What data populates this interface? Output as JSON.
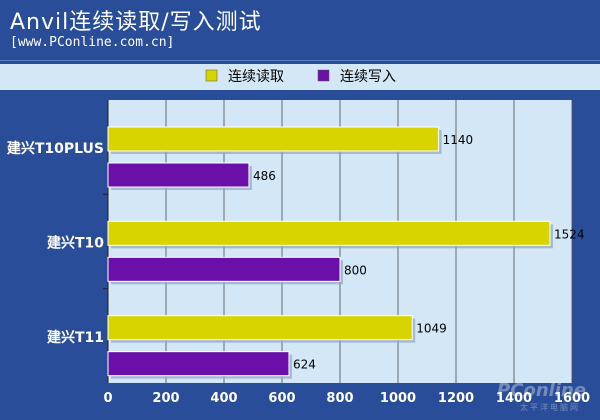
{
  "title": "Anvil连续读取/写入测试",
  "subtitle": "[www.PConline.com.cn]",
  "watermark": {
    "main": "PConline",
    "sub": "太平洋电脑网"
  },
  "colors": {
    "background": "#2a4d99",
    "plot_background": "#d4e7f7",
    "read": "#d7d400",
    "write": "#6a10a8"
  },
  "chart_data": {
    "type": "bar",
    "orientation": "horizontal",
    "title": "Anvil连续读取/写入测试",
    "categories": [
      "建兴T10PLUS",
      "建兴T10",
      "建兴T11"
    ],
    "series": [
      {
        "name": "连续读取",
        "values": [
          1140,
          1524,
          1049
        ]
      },
      {
        "name": "连续写入",
        "values": [
          486,
          800,
          624
        ]
      }
    ],
    "xlim": [
      0,
      1600
    ],
    "xticks": [
      "0",
      "200",
      "400",
      "600",
      "800",
      "1000",
      "1200",
      "1400",
      "1600"
    ],
    "grid": true,
    "legend": "top-center"
  }
}
